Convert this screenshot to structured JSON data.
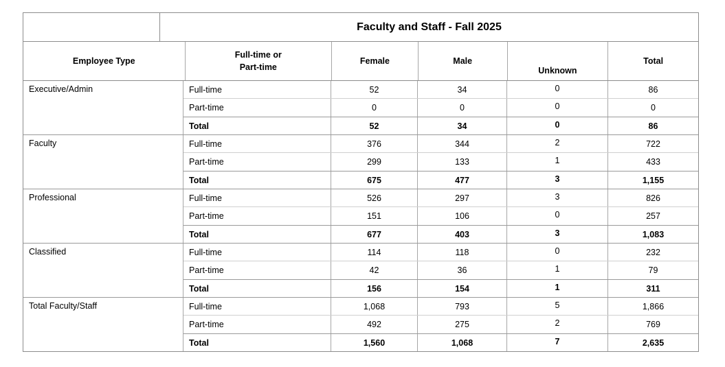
{
  "title": "Faculty and Staff - Fall 2025",
  "header": {
    "employee_type": "Employee Type",
    "ft_pt_line1": "Full-time or",
    "ft_pt_line2": "Part-time",
    "female": "Female",
    "male": "Male",
    "unknown": "Unknown",
    "total": "Total"
  },
  "groups": [
    {
      "label": "Executive/Admin",
      "rows": [
        {
          "type": "Full-time",
          "female": "52",
          "male": "34",
          "unknown": "0",
          "total": "86"
        },
        {
          "type": "Part-time",
          "female": "0",
          "male": "0",
          "unknown": "0",
          "total": "0"
        },
        {
          "type": "Total",
          "female": "52",
          "male": "34",
          "unknown": "0",
          "total": "86"
        }
      ]
    },
    {
      "label": "Faculty",
      "rows": [
        {
          "type": "Full-time",
          "female": "376",
          "male": "344",
          "unknown": "2",
          "total": "722"
        },
        {
          "type": "Part-time",
          "female": "299",
          "male": "133",
          "unknown": "1",
          "total": "433"
        },
        {
          "type": "Total",
          "female": "675",
          "male": "477",
          "unknown": "3",
          "total": "1,155"
        }
      ]
    },
    {
      "label": "Professional",
      "rows": [
        {
          "type": "Full-time",
          "female": "526",
          "male": "297",
          "unknown": "3",
          "total": "826"
        },
        {
          "type": "Part-time",
          "female": "151",
          "male": "106",
          "unknown": "0",
          "total": "257"
        },
        {
          "type": "Total",
          "female": "677",
          "male": "403",
          "unknown": "3",
          "total": "1,083"
        }
      ]
    },
    {
      "label": "Classified",
      "rows": [
        {
          "type": "Full-time",
          "female": "114",
          "male": "118",
          "unknown": "0",
          "total": "232"
        },
        {
          "type": "Part-time",
          "female": "42",
          "male": "36",
          "unknown": "1",
          "total": "79"
        },
        {
          "type": "Total",
          "female": "156",
          "male": "154",
          "unknown": "1",
          "total": "311"
        }
      ]
    },
    {
      "label": "Total Faculty/Staff",
      "rows": [
        {
          "type": "Full-time",
          "female": "1,068",
          "male": "793",
          "unknown": "5",
          "total": "1,866"
        },
        {
          "type": "Part-time",
          "female": "492",
          "male": "275",
          "unknown": "2",
          "total": "769"
        },
        {
          "type": "Total",
          "female": "1,560",
          "male": "1,068",
          "unknown": "7",
          "total": "2,635"
        }
      ]
    }
  ],
  "colors": {
    "outer_border": "#8c8c8c",
    "vertical_border": "#a6a6a6",
    "light_row_border": "#cfcfcf",
    "group_border": "#999999",
    "text": "#000000",
    "background": "#ffffff"
  }
}
